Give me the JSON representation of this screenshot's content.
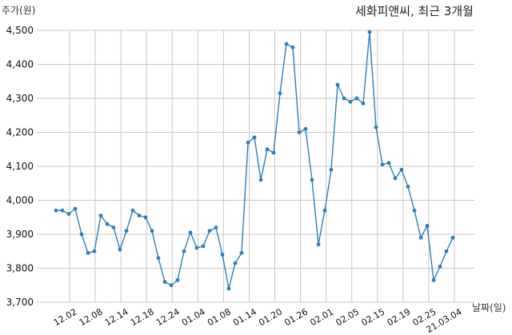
{
  "chart_data": {
    "type": "line",
    "title": "세화피앤씨, 최근 3개월",
    "ylabel": "주가(원)",
    "xlabel": "날짜(일)",
    "ylim": [
      3700,
      4500
    ],
    "yticks": [
      "3,700",
      "3,800",
      "3,900",
      "4,000",
      "4,100",
      "4,200",
      "4,300",
      "4,400",
      "4,500"
    ],
    "xtick_labels": [
      "12.02",
      "12.08",
      "12.14",
      "12.18",
      "12.24",
      "01.04",
      "01.08",
      "01.14",
      "01.20",
      "01.26",
      "02.01",
      "02.05",
      "02.15",
      "02.19",
      "02.25",
      "21.03.04"
    ],
    "grid": true,
    "line_color": "#2f7fb6",
    "values": [
      3970,
      3970,
      3960,
      3975,
      3900,
      3845,
      3850,
      3955,
      3930,
      3920,
      3855,
      3910,
      3970,
      3955,
      3950,
      3910,
      3830,
      3760,
      3750,
      3765,
      3850,
      3905,
      3860,
      3865,
      3910,
      3920,
      3840,
      3740,
      3815,
      3845,
      4170,
      4185,
      4060,
      4150,
      4140,
      4315,
      4460,
      4450,
      4200,
      4210,
      4060,
      3870,
      3970,
      4090,
      4340,
      4300,
      4290,
      4300,
      4285,
      4495,
      4215,
      4105,
      4110,
      4065,
      4090,
      4040,
      3970,
      3890,
      3925,
      3765,
      3805,
      3850,
      3890
    ]
  }
}
